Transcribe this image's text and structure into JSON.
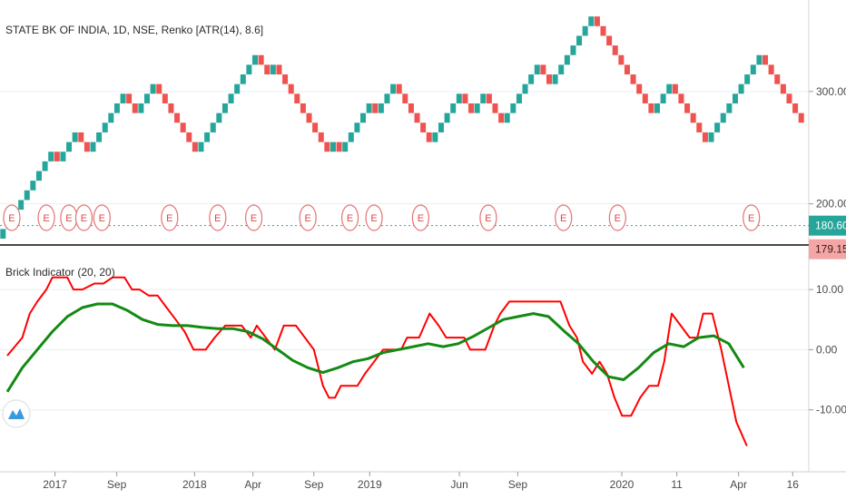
{
  "chart_data": [
    {
      "type": "renko",
      "title": "STATE BK OF INDIA, 1D, NSE, Renko [ATR(14), 8.6]",
      "ylim": [
        165,
        375
      ],
      "yticks": [
        {
          "value": 300,
          "label": "300.00"
        },
        {
          "value": 200,
          "label": "200.00"
        }
      ],
      "brick_size": 8.6,
      "x_index_range": [
        0,
        133
      ],
      "bricks": [
        [
          0,
          177.6,
          "up"
        ],
        [
          1,
          186.2,
          "up"
        ],
        [
          2,
          194.8,
          "up"
        ],
        [
          3,
          203.4,
          "up"
        ],
        [
          4,
          212,
          "up"
        ],
        [
          5,
          220.6,
          "up"
        ],
        [
          6,
          229.2,
          "up"
        ],
        [
          7,
          237.8,
          "up"
        ],
        [
          8,
          246.4,
          "up"
        ],
        [
          9,
          237.8,
          "dn"
        ],
        [
          10,
          246.4,
          "up"
        ],
        [
          11,
          255,
          "up"
        ],
        [
          12,
          263.6,
          "up"
        ],
        [
          13,
          255,
          "dn"
        ],
        [
          14,
          246.4,
          "dn"
        ],
        [
          15,
          255,
          "up"
        ],
        [
          16,
          263.6,
          "up"
        ],
        [
          17,
          272.2,
          "up"
        ],
        [
          18,
          280.8,
          "up"
        ],
        [
          19,
          289.4,
          "up"
        ],
        [
          20,
          298,
          "up"
        ],
        [
          21,
          289.4,
          "dn"
        ],
        [
          22,
          280.8,
          "dn"
        ],
        [
          23,
          289.4,
          "up"
        ],
        [
          24,
          298,
          "up"
        ],
        [
          25,
          306.6,
          "up"
        ],
        [
          26,
          298,
          "dn"
        ],
        [
          27,
          289.4,
          "dn"
        ],
        [
          28,
          280.8,
          "dn"
        ],
        [
          29,
          272.2,
          "dn"
        ],
        [
          30,
          263.6,
          "dn"
        ],
        [
          31,
          255,
          "dn"
        ],
        [
          32,
          246.4,
          "dn"
        ],
        [
          33,
          255,
          "up"
        ],
        [
          34,
          263.6,
          "up"
        ],
        [
          35,
          272.2,
          "up"
        ],
        [
          36,
          280.8,
          "up"
        ],
        [
          37,
          289.4,
          "up"
        ],
        [
          38,
          298,
          "up"
        ],
        [
          39,
          306.6,
          "up"
        ],
        [
          40,
          315.2,
          "up"
        ],
        [
          41,
          323.8,
          "up"
        ],
        [
          42,
          332.4,
          "up"
        ],
        [
          43,
          323.8,
          "dn"
        ],
        [
          44,
          315.2,
          "dn"
        ],
        [
          45,
          323.8,
          "up"
        ],
        [
          46,
          315.2,
          "dn"
        ],
        [
          47,
          306.6,
          "dn"
        ],
        [
          48,
          298,
          "dn"
        ],
        [
          49,
          289.4,
          "dn"
        ],
        [
          50,
          280.8,
          "dn"
        ],
        [
          51,
          272.2,
          "dn"
        ],
        [
          52,
          263.6,
          "dn"
        ],
        [
          53,
          255,
          "dn"
        ],
        [
          54,
          246.4,
          "dn"
        ],
        [
          55,
          255,
          "up"
        ],
        [
          56,
          246.4,
          "dn"
        ],
        [
          57,
          255,
          "up"
        ],
        [
          58,
          263.6,
          "up"
        ],
        [
          59,
          272.2,
          "up"
        ],
        [
          60,
          280.8,
          "up"
        ],
        [
          61,
          289.4,
          "up"
        ],
        [
          62,
          280.8,
          "dn"
        ],
        [
          63,
          289.4,
          "up"
        ],
        [
          64,
          298,
          "up"
        ],
        [
          65,
          306.6,
          "up"
        ],
        [
          66,
          298,
          "dn"
        ],
        [
          67,
          289.4,
          "dn"
        ],
        [
          68,
          280.8,
          "dn"
        ],
        [
          69,
          272.2,
          "dn"
        ],
        [
          70,
          263.6,
          "dn"
        ],
        [
          71,
          255,
          "dn"
        ],
        [
          72,
          263.6,
          "up"
        ],
        [
          73,
          272.2,
          "up"
        ],
        [
          74,
          280.8,
          "up"
        ],
        [
          75,
          289.4,
          "up"
        ],
        [
          76,
          298,
          "up"
        ],
        [
          77,
          289.4,
          "dn"
        ],
        [
          78,
          280.8,
          "dn"
        ],
        [
          79,
          289.4,
          "up"
        ],
        [
          80,
          298,
          "up"
        ],
        [
          81,
          289.4,
          "dn"
        ],
        [
          82,
          280.8,
          "dn"
        ],
        [
          83,
          272.2,
          "dn"
        ],
        [
          84,
          280.8,
          "up"
        ],
        [
          85,
          289.4,
          "up"
        ],
        [
          86,
          298,
          "up"
        ],
        [
          87,
          306.6,
          "up"
        ],
        [
          88,
          315.2,
          "up"
        ],
        [
          89,
          323.8,
          "up"
        ],
        [
          90,
          315.2,
          "dn"
        ],
        [
          91,
          306.6,
          "dn"
        ],
        [
          92,
          315.2,
          "up"
        ],
        [
          93,
          323.8,
          "up"
        ],
        [
          94,
          332.4,
          "up"
        ],
        [
          95,
          341,
          "up"
        ],
        [
          96,
          349.6,
          "up"
        ],
        [
          97,
          358.2,
          "up"
        ],
        [
          98,
          366.8,
          "up"
        ],
        [
          99,
          358.2,
          "dn"
        ],
        [
          100,
          349.6,
          "dn"
        ],
        [
          101,
          341,
          "dn"
        ],
        [
          102,
          332.4,
          "dn"
        ],
        [
          103,
          323.8,
          "dn"
        ],
        [
          104,
          315.2,
          "dn"
        ],
        [
          105,
          306.6,
          "dn"
        ],
        [
          106,
          298,
          "dn"
        ],
        [
          107,
          289.4,
          "dn"
        ],
        [
          108,
          280.8,
          "dn"
        ],
        [
          109,
          289.4,
          "up"
        ],
        [
          110,
          298,
          "up"
        ],
        [
          111,
          306.6,
          "up"
        ],
        [
          112,
          298,
          "dn"
        ],
        [
          113,
          289.4,
          "dn"
        ],
        [
          114,
          280.8,
          "dn"
        ],
        [
          115,
          272.2,
          "dn"
        ],
        [
          116,
          263.6,
          "dn"
        ],
        [
          117,
          255,
          "dn"
        ],
        [
          118,
          263.6,
          "up"
        ],
        [
          119,
          272.2,
          "up"
        ],
        [
          120,
          280.8,
          "up"
        ],
        [
          121,
          289.4,
          "up"
        ],
        [
          122,
          298,
          "up"
        ],
        [
          123,
          306.6,
          "up"
        ],
        [
          124,
          315.2,
          "up"
        ],
        [
          125,
          323.8,
          "up"
        ],
        [
          126,
          332.4,
          "up"
        ],
        [
          127,
          323.8,
          "dn"
        ],
        [
          128,
          315.2,
          "dn"
        ],
        [
          129,
          306.6,
          "dn"
        ],
        [
          130,
          298,
          "dn"
        ],
        [
          131,
          289.4,
          "dn"
        ],
        [
          132,
          280.8,
          "dn"
        ],
        [
          133,
          272.2,
          "dn"
        ]
      ],
      "last_price": {
        "value": 180.6,
        "label": "180.60"
      },
      "marker_price": {
        "value": 179.15,
        "label": "179.15"
      },
      "event_markers": [
        {
          "x": 0.3,
          "label": "E"
        },
        {
          "x": 2.6,
          "label": "E"
        },
        {
          "x": 4.1,
          "label": "E"
        },
        {
          "x": 5.1,
          "label": "E"
        },
        {
          "x": 6.3,
          "label": "E"
        },
        {
          "x": 10.8,
          "label": "E"
        },
        {
          "x": 14.0,
          "label": "E"
        },
        {
          "x": 16.4,
          "label": "E"
        },
        {
          "x": 20.0,
          "label": "E"
        },
        {
          "x": 22.8,
          "label": "E"
        },
        {
          "x": 24.4,
          "label": "E"
        },
        {
          "x": 27.5,
          "label": "E"
        },
        {
          "x": 32.0,
          "label": "E"
        },
        {
          "x": 37.0,
          "label": "E"
        },
        {
          "x": 40.6,
          "label": "E"
        },
        {
          "x": 49.5,
          "label": "E"
        }
      ],
      "colors": {
        "up": "#26a69a",
        "down": "#ef5350",
        "marker": "#e57373",
        "last": "#26a69a",
        "last_marker": "#f4a6a6"
      }
    },
    {
      "type": "line",
      "title": "Brick Indicator (20, 20)",
      "ylim": [
        -20,
        16.5
      ],
      "yticks": [
        {
          "value": 10,
          "label": "10.00"
        },
        {
          "value": 0,
          "label": "0.00"
        },
        {
          "value": -10,
          "label": "-10.00"
        }
      ],
      "x_range": [
        0,
        50
      ],
      "series": [
        {
          "color": "#ff0000",
          "x": [
            0,
            1,
            1.5,
            2,
            2.6,
            3,
            4,
            4.4,
            5,
            5.8,
            6.4,
            7,
            7.8,
            8.3,
            8.8,
            9.4,
            10,
            10.6,
            11.2,
            11.8,
            12.4,
            12.6,
            13.2,
            13.8,
            14.5,
            15,
            15.6,
            16.2,
            16.6,
            17.2,
            17.8,
            18.4,
            18.9,
            19.2,
            19.8,
            20.4,
            21,
            21.4,
            21.8,
            22.2,
            22.8,
            23.3,
            23.8,
            24.4,
            25,
            25.6,
            26.2,
            26.6,
            27.4,
            28.1,
            28.7,
            29.2,
            29.8,
            30.4,
            30.8,
            31.2,
            31.8,
            32.4,
            32.8,
            33.4,
            34,
            34.6,
            35.2,
            35.8,
            36.2,
            36.8,
            37.4,
            37.9,
            38.3,
            38.9,
            39.4,
            39.9,
            40.4,
            40.9,
            41.5,
            42.1,
            42.7,
            43.3,
            43.7,
            44.2,
            44.8,
            45.4,
            45.9,
            46.3,
            46.9,
            47.5,
            48,
            48.5,
            49.2
          ],
          "y": [
            -1,
            2,
            6,
            8,
            10,
            12,
            12,
            10,
            10,
            11,
            11,
            12,
            12,
            10,
            10,
            9,
            9,
            7,
            5,
            3,
            0,
            0,
            0,
            2,
            4,
            4,
            4,
            2,
            4,
            2,
            0,
            4,
            4,
            4,
            2,
            0,
            -6,
            -8,
            -8,
            -6,
            -6,
            -6,
            -4,
            -2,
            0,
            0,
            0,
            2,
            2,
            6,
            4,
            2,
            2,
            2,
            0,
            0,
            0,
            4,
            6,
            8,
            8,
            8,
            8,
            8,
            8,
            8,
            4,
            2,
            -2,
            -4,
            -2,
            -4,
            -8,
            -11,
            -11,
            -8,
            -6,
            -6,
            -2,
            6,
            4,
            2,
            2,
            6,
            6,
            0,
            -6,
            -12,
            -16
          ],
          "values_are_approximate": true
        },
        {
          "color": "#138a13",
          "x": [
            0,
            1,
            2,
            3,
            4,
            5,
            6,
            7,
            8,
            9,
            10,
            11,
            12,
            13,
            14,
            15,
            16,
            17,
            18,
            19,
            20,
            21,
            22,
            23,
            24,
            25,
            26,
            27,
            28,
            29,
            30,
            31,
            32,
            33,
            34,
            35,
            36,
            37,
            38,
            39,
            40,
            41,
            42,
            43,
            44,
            45,
            46,
            47,
            48,
            49
          ],
          "y": [
            -7,
            -3,
            0,
            3,
            5.5,
            7,
            7.6,
            7.6,
            6.5,
            5,
            4.2,
            4,
            4,
            3.7,
            3.5,
            3.5,
            3,
            1.8,
            0,
            -1.8,
            -3,
            -3.8,
            -3,
            -2,
            -1.5,
            -0.5,
            0,
            0.5,
            1,
            0.5,
            1,
            2.2,
            3.6,
            5,
            5.5,
            6,
            5.5,
            3.2,
            1,
            -2,
            -4.5,
            -5,
            -3,
            -0.5,
            1,
            0.5,
            2,
            2.3,
            1,
            -3
          ],
          "values_are_approximate": true
        }
      ]
    }
  ],
  "xaxis": {
    "ticks": [
      {
        "label": "2017",
        "pos": 0.065
      },
      {
        "label": "Sep",
        "pos": 0.138
      },
      {
        "label": "2018",
        "pos": 0.23
      },
      {
        "label": "Apr",
        "pos": 0.299
      },
      {
        "label": "Sep",
        "pos": 0.371
      },
      {
        "label": "2019",
        "pos": 0.437
      },
      {
        "label": "Jun",
        "pos": 0.543
      },
      {
        "label": "Sep",
        "pos": 0.612
      },
      {
        "label": "2020",
        "pos": 0.735
      },
      {
        "label": "11",
        "pos": 0.8
      },
      {
        "label": "Apr",
        "pos": 0.873
      },
      {
        "label": "16",
        "pos": 0.937
      }
    ]
  },
  "logo": {
    "icon": "tradingview-logo-icon"
  }
}
